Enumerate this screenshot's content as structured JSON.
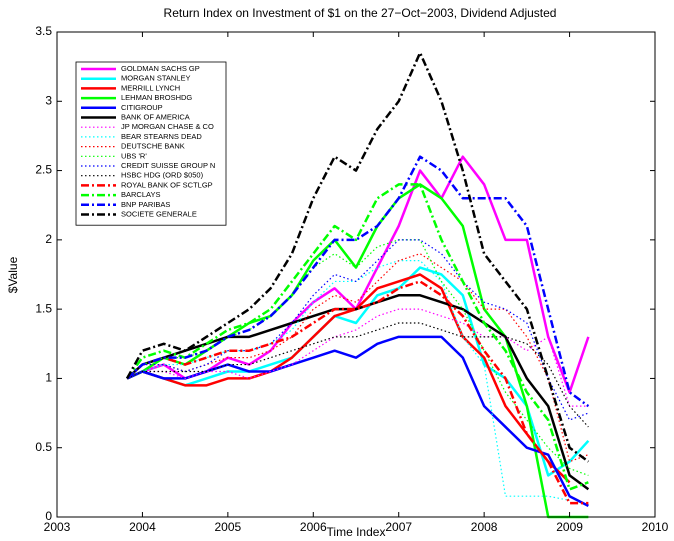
{
  "chart_data": {
    "type": "line",
    "title": "Return Index on Investment of $1 on the 27−Oct−2003, Dividend Adjusted",
    "x_label": "Time Index",
    "y_label": "$Value",
    "xlim": [
      2003,
      2010
    ],
    "xticks": [
      2003,
      2004,
      2005,
      2006,
      2007,
      2008,
      2009,
      2010
    ],
    "ylim": [
      0,
      3.5
    ],
    "yticks": [
      0,
      0.5,
      1,
      1.5,
      2,
      2.5,
      3,
      3.5
    ],
    "grid": false,
    "legend": "upper left",
    "x": [
      2003.82,
      2004,
      2004.25,
      2004.5,
      2004.75,
      2005,
      2005.25,
      2005.5,
      2005.75,
      2006,
      2006.25,
      2006.5,
      2006.75,
      2007,
      2007.25,
      2007.5,
      2007.75,
      2008,
      2008.25,
      2008.5,
      2008.75,
      2009,
      2009.22
    ],
    "series": [
      {
        "name": "GOLDMAN SACHS GP",
        "color": "#ff00ff",
        "style": "-",
        "width": 2.5,
        "values": [
          1,
          1.05,
          1.1,
          1.0,
          1.05,
          1.15,
          1.1,
          1.2,
          1.4,
          1.55,
          1.65,
          1.5,
          1.8,
          2.1,
          2.5,
          2.3,
          2.6,
          2.4,
          2.0,
          2.0,
          1.3,
          0.9,
          1.3
        ]
      },
      {
        "name": "MORGAN STANLEY",
        "color": "#00ffff",
        "style": "-",
        "width": 2.5,
        "values": [
          1,
          1.05,
          1.0,
          0.95,
          1.0,
          1.05,
          1.05,
          1.1,
          1.15,
          1.3,
          1.45,
          1.4,
          1.6,
          1.65,
          1.8,
          1.75,
          1.6,
          1.1,
          1.0,
          0.8,
          0.3,
          0.4,
          0.55
        ]
      },
      {
        "name": "MERRILL LYNCH",
        "color": "#ff0000",
        "style": "-",
        "width": 2.5,
        "values": [
          1,
          1.05,
          1.0,
          0.95,
          0.95,
          1.0,
          1.0,
          1.05,
          1.15,
          1.3,
          1.45,
          1.5,
          1.65,
          1.7,
          1.75,
          1.65,
          1.3,
          1.15,
          0.8,
          0.6,
          0.4,
          0.25,
          null
        ]
      },
      {
        "name": "LEHMAN BROSHDG",
        "color": "#00ff00",
        "style": "-",
        "width": 2.5,
        "values": [
          1,
          1.05,
          1.15,
          1.1,
          1.2,
          1.3,
          1.4,
          1.45,
          1.6,
          1.85,
          2.0,
          1.8,
          2.1,
          2.3,
          2.4,
          2.3,
          2.1,
          1.5,
          1.3,
          0.8,
          0,
          0,
          0
        ]
      },
      {
        "name": "CITIGROUP",
        "color": "#0000ff",
        "style": "-",
        "width": 2.5,
        "values": [
          1,
          1.05,
          1.0,
          1.0,
          1.05,
          1.1,
          1.05,
          1.05,
          1.1,
          1.15,
          1.2,
          1.15,
          1.25,
          1.3,
          1.3,
          1.3,
          1.15,
          0.8,
          0.65,
          0.5,
          0.45,
          0.15,
          0.08
        ]
      },
      {
        "name": "BANK OF AMERICA",
        "color": "#000000",
        "style": "-",
        "width": 2.5,
        "values": [
          1,
          1.1,
          1.15,
          1.2,
          1.25,
          1.3,
          1.3,
          1.35,
          1.4,
          1.45,
          1.5,
          1.5,
          1.55,
          1.6,
          1.6,
          1.55,
          1.5,
          1.4,
          1.3,
          1.0,
          0.8,
          0.3,
          0.2
        ]
      },
      {
        "name": "JP MORGAN CHASE & CO",
        "color": "#ff00ff",
        "style": ":",
        "width": 1.2,
        "values": [
          1,
          1.05,
          1.05,
          1.0,
          1.05,
          1.05,
          1.0,
          1.05,
          1.1,
          1.2,
          1.3,
          1.35,
          1.45,
          1.5,
          1.5,
          1.45,
          1.4,
          1.3,
          1.3,
          1.2,
          1.3,
          0.8,
          0.8
        ]
      },
      {
        "name": "BEAR STEARNS DEAD",
        "color": "#00ffff",
        "style": ":",
        "width": 1.2,
        "values": [
          1,
          1.05,
          1.1,
          1.1,
          1.15,
          1.2,
          1.2,
          1.25,
          1.35,
          1.55,
          1.7,
          1.7,
          1.8,
          1.85,
          1.85,
          1.7,
          1.3,
          1.1,
          0.15,
          0.15,
          0.15,
          0.12,
          null
        ]
      },
      {
        "name": "DEUTSCHE BANK",
        "color": "#ff0000",
        "style": ":",
        "width": 1.2,
        "values": [
          1,
          1.1,
          1.1,
          1.05,
          1.1,
          1.15,
          1.15,
          1.2,
          1.3,
          1.5,
          1.6,
          1.55,
          1.7,
          1.85,
          1.9,
          1.8,
          1.7,
          1.5,
          1.5,
          1.3,
          1.0,
          0.4,
          0.45
        ]
      },
      {
        "name": "UBS 'R'",
        "color": "#00ff00",
        "style": ":",
        "width": 1.2,
        "values": [
          1,
          1.1,
          1.15,
          1.15,
          1.2,
          1.3,
          1.35,
          1.45,
          1.6,
          1.8,
          1.9,
          1.8,
          1.95,
          2.0,
          2.0,
          1.7,
          1.5,
          1.2,
          0.9,
          0.7,
          0.5,
          0.35,
          0.3
        ]
      },
      {
        "name": "CREDIT SUISSE GROUP N",
        "color": "#0000ff",
        "style": ":",
        "width": 1.2,
        "values": [
          1,
          1.1,
          1.1,
          1.05,
          1.1,
          1.2,
          1.2,
          1.25,
          1.4,
          1.6,
          1.75,
          1.7,
          1.85,
          2.0,
          2.0,
          1.9,
          1.7,
          1.55,
          1.5,
          1.4,
          1.0,
          0.7,
          0.75
        ]
      },
      {
        "name": "HSBC HDG (ORD $050)",
        "color": "#000000",
        "style": ":",
        "width": 1.2,
        "values": [
          1,
          1.05,
          1.05,
          1.05,
          1.05,
          1.1,
          1.1,
          1.15,
          1.2,
          1.25,
          1.3,
          1.3,
          1.35,
          1.4,
          1.4,
          1.35,
          1.3,
          1.3,
          1.3,
          1.25,
          1.1,
          0.8,
          0.65
        ]
      },
      {
        "name": "ROYAL BANK OF SCTLGP",
        "color": "#ff0000",
        "style": "-.",
        "width": 2.5,
        "values": [
          1,
          1.1,
          1.15,
          1.1,
          1.15,
          1.2,
          1.2,
          1.25,
          1.3,
          1.4,
          1.5,
          1.5,
          1.55,
          1.65,
          1.7,
          1.6,
          1.45,
          1.2,
          1.0,
          0.6,
          0.4,
          0.1,
          0.1
        ]
      },
      {
        "name": "BARCLAYS",
        "color": "#00ff00",
        "style": "-.",
        "width": 2.5,
        "values": [
          1,
          1.15,
          1.2,
          1.15,
          1.25,
          1.35,
          1.4,
          1.5,
          1.7,
          1.9,
          2.1,
          2.0,
          2.3,
          2.4,
          2.4,
          2.0,
          1.7,
          1.4,
          1.2,
          0.9,
          0.7,
          0.2,
          0.25
        ]
      },
      {
        "name": "BNP PARIBAS",
        "color": "#0000ff",
        "style": "-.",
        "width": 2.5,
        "values": [
          1,
          1.1,
          1.15,
          1.15,
          1.2,
          1.3,
          1.35,
          1.45,
          1.6,
          1.8,
          2.0,
          2.0,
          2.1,
          2.3,
          2.6,
          2.5,
          2.3,
          2.3,
          2.3,
          2.1,
          1.5,
          0.9,
          0.8
        ]
      },
      {
        "name": "SOCIETE GENERALE",
        "color": "#000000",
        "style": "-.",
        "width": 2.5,
        "values": [
          1,
          1.2,
          1.25,
          1.2,
          1.3,
          1.4,
          1.5,
          1.65,
          1.9,
          2.3,
          2.6,
          2.5,
          2.8,
          3.0,
          3.35,
          3.0,
          2.5,
          1.9,
          1.7,
          1.5,
          1.0,
          0.5,
          0.4
        ]
      }
    ]
  }
}
